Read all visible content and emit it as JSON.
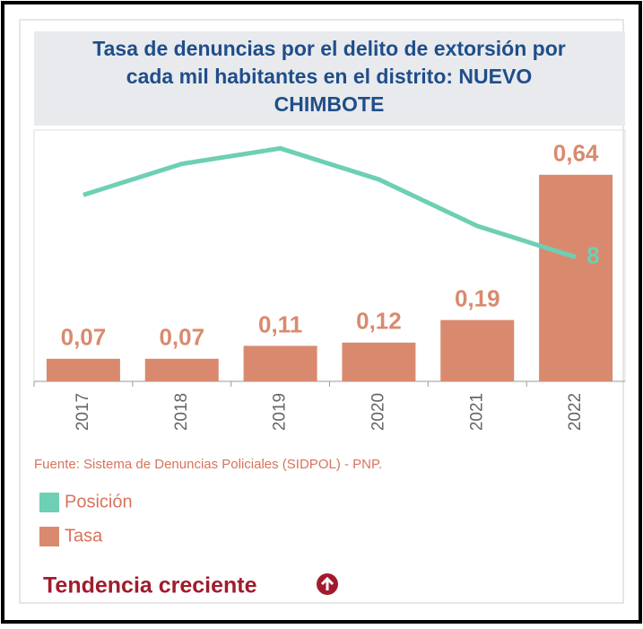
{
  "chart_data": {
    "type": "bar-line",
    "title": "Tasa de denuncias por el delito de extorsión por cada mil habitantes en el distrito: NUEVO CHIMBOTE",
    "categories": [
      "2017",
      "2018",
      "2019",
      "2020",
      "2021",
      "2022"
    ],
    "series": [
      {
        "name": "Tasa",
        "type": "bar",
        "color": "#d98a6e",
        "values": [
          0.07,
          0.07,
          0.11,
          0.12,
          0.19,
          0.64
        ],
        "value_labels": [
          "0,07",
          "0,07",
          "0,11",
          "0,12",
          "0,19",
          "0,64"
        ]
      },
      {
        "name": "Posición",
        "type": "line",
        "axis": "y2",
        "color": "#6dcfb3",
        "values": [
          12,
          14,
          15,
          13,
          10,
          8
        ],
        "label_last": true
      }
    ],
    "ylim": [
      0,
      0.77
    ],
    "y2lim": [
      0,
      16
    ],
    "source": "Fuente: Sistema de Denuncias Policiales (SIDPOL) - PNP.",
    "trend": "Tendencia creciente"
  }
}
